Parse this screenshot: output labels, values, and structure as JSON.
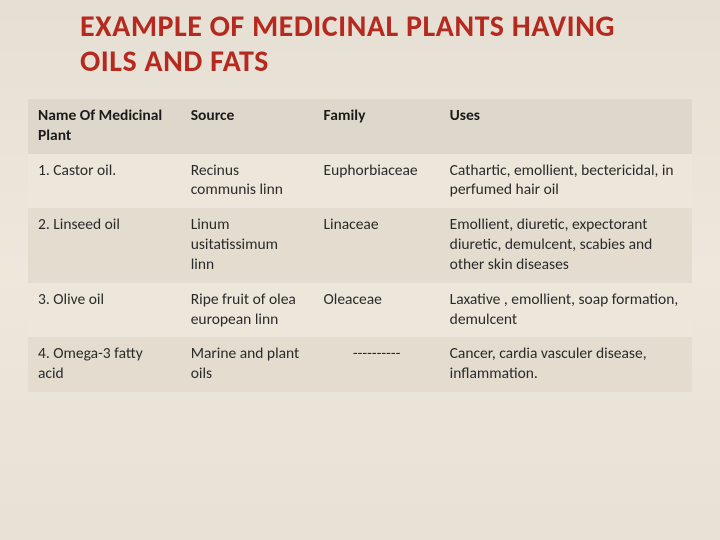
{
  "title": "EXAMPLE OF MEDICINAL PLANTS HAVING OILS AND FATS",
  "colors": {
    "title": "#b5291f",
    "page_bg": "#e8e2d8",
    "header_bg": "#ded7cb",
    "row_alt_bg": "#ece6db",
    "row_norm_bg": "#e3dccf",
    "text": "#2a2a2a"
  },
  "typography": {
    "title_fontsize": 30,
    "title_weight": 700,
    "cell_fontsize": 15.5,
    "header_weight": 700
  },
  "table": {
    "column_widths_pct": [
      23,
      20,
      19,
      38
    ],
    "headers": {
      "name": "Name Of Medicinal Plant",
      "source": "Source",
      "family": "Family",
      "uses": "Uses"
    },
    "rows": [
      {
        "name": "1. Castor  oil.",
        "source": "Recinus communis linn",
        "family": "Euphorbiaceae",
        "uses": "Cathartic, emollient, bectericidal, in perfumed hair oil"
      },
      {
        "name": "2. Linseed oil",
        "source": "Linum usitatissimum linn",
        "family": "Linaceae",
        "uses": "Emollient, diuretic, expectorant diuretic, demulcent, scabies and other skin diseases"
      },
      {
        "name": "3. Olive oil",
        "source": "Ripe fruit of olea european linn",
        "family": "Oleaceae",
        "uses": "Laxative , emollient, soap formation, demulcent"
      },
      {
        "name": "4. Omega-3 fatty acid",
        "source": "Marine and plant oils",
        "family": "----------",
        "uses": "Cancer, cardia vasculer disease, inflammation."
      }
    ]
  }
}
